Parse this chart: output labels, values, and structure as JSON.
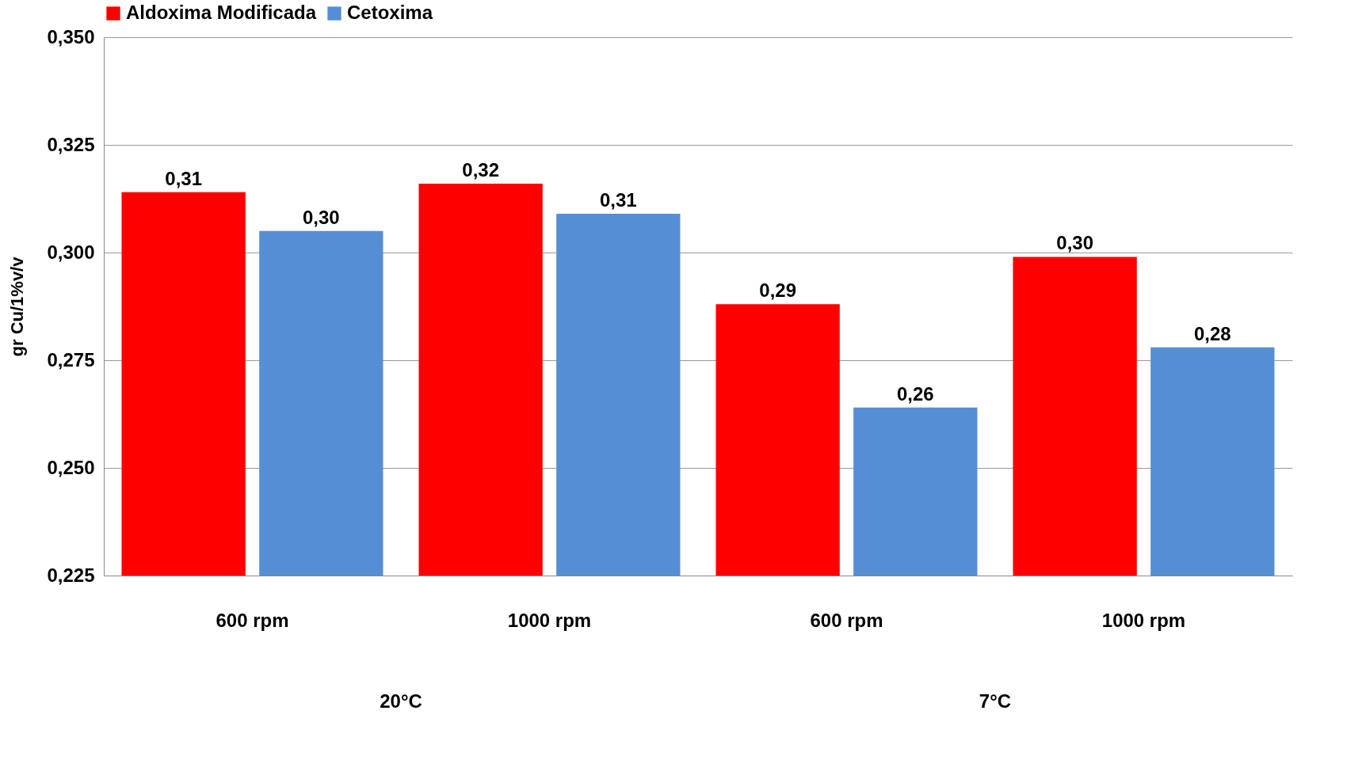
{
  "chart_data": {
    "type": "bar",
    "ylabel": "gr Cu/1%v/v",
    "categories": [
      "600 rpm",
      "1000 rpm",
      "600 rpm",
      "1000 rpm"
    ],
    "series": [
      {
        "name": "Aldoxima Modificada",
        "color": "#ff0000",
        "values": [
          0.314,
          0.316,
          0.288,
          0.299
        ],
        "value_labels": [
          "0,31",
          "0,32",
          "0,29",
          "0,30"
        ]
      },
      {
        "name": "Cetoxima",
        "color": "#558ed5",
        "values": [
          0.305,
          0.309,
          0.264,
          0.278
        ],
        "value_labels": [
          "0,30",
          "0,31",
          "0,26",
          "0,28"
        ]
      }
    ],
    "annotations": [
      "20°C",
      "7°C"
    ],
    "ylim": [
      0.225,
      0.35
    ],
    "yticks": [
      {
        "value": 0.225,
        "label": "0,225"
      },
      {
        "value": 0.25,
        "label": "0,250"
      },
      {
        "value": 0.275,
        "label": "0,275"
      },
      {
        "value": 0.3,
        "label": "0,300"
      },
      {
        "value": 0.325,
        "label": "0,325"
      },
      {
        "value": 0.35,
        "label": "0,350"
      }
    ],
    "grid": "y",
    "legend": "top"
  }
}
